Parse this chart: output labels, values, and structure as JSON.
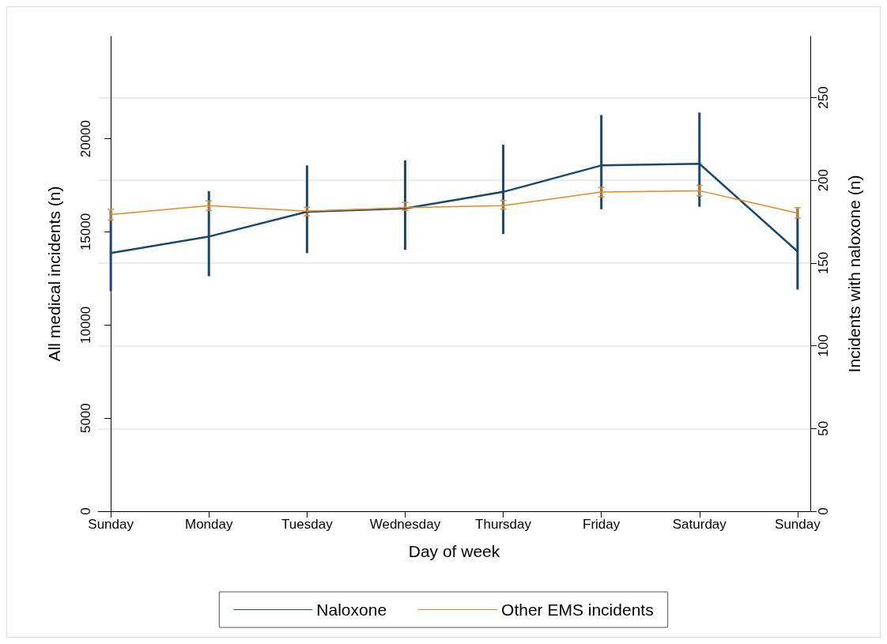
{
  "chart_data": {
    "type": "line",
    "xlabel": "Day of week",
    "ylabel": "All medical incidents (n)",
    "y2label": "Incidents with naloxone (n)",
    "categories": [
      "Sunday",
      "Monday",
      "Tuesday",
      "Wednesday",
      "Thursday",
      "Friday",
      "Saturday",
      "Sunday"
    ],
    "series": [
      {
        "name": "Naloxone",
        "color": "#1a476f",
        "axis": "y2",
        "values": [
          156,
          166,
          181,
          183,
          193,
          209,
          210,
          157
        ],
        "errors": [
          [
            133,
            182
          ],
          [
            142,
            193.5
          ],
          [
            156,
            209
          ],
          [
            158,
            212
          ],
          [
            167.5,
            221.5
          ],
          [
            182.5,
            239.5
          ],
          [
            184,
            241
          ],
          [
            134,
            183
          ]
        ]
      },
      {
        "name": "Other EMS incidents",
        "color": "#e8891f",
        "values": [
          15930,
          16410,
          16110,
          16300,
          16410,
          17140,
          17210,
          16010
        ],
        "errors": [
          [
            15640,
            16220
          ],
          [
            16150,
            16660
          ],
          [
            15870,
            16320
          ],
          [
            16150,
            16590
          ],
          [
            16220,
            16690
          ],
          [
            16880,
            17390
          ],
          [
            16930,
            17500
          ],
          [
            15740,
            16300
          ]
        ]
      }
    ],
    "ylim": [
      0,
      25500
    ],
    "yticks": [
      0,
      5000,
      10000,
      15000,
      20000
    ],
    "y2lim": [
      0,
      287
    ],
    "y2ticks": [
      0,
      50,
      100,
      150,
      200,
      250
    ],
    "grid": "y",
    "legend": "bottom",
    "marker": "none",
    "line_style": "solid"
  }
}
